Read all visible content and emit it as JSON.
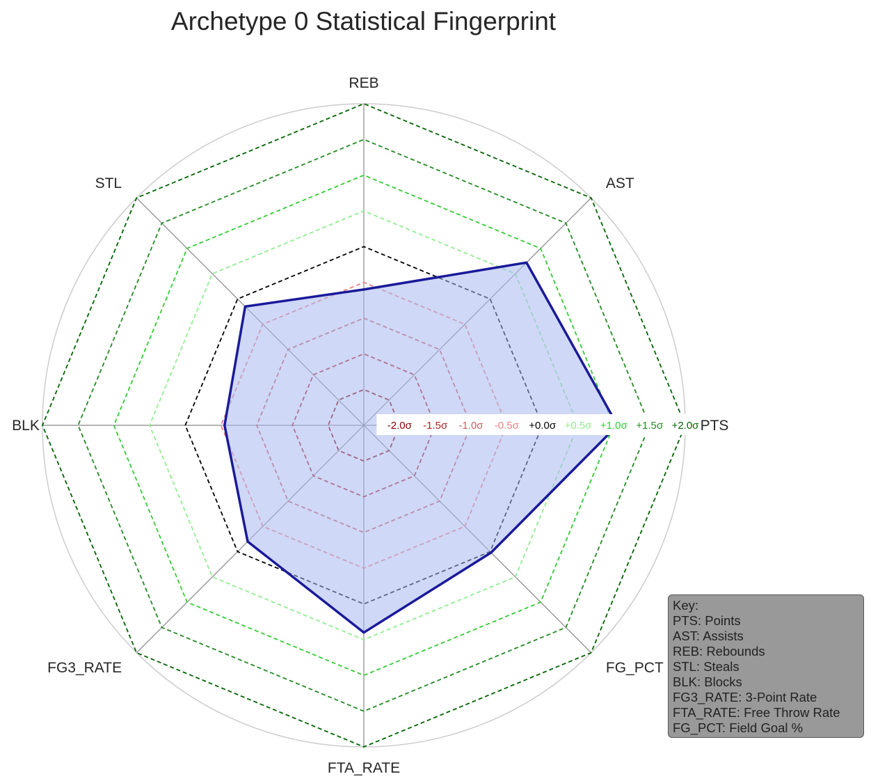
{
  "chart_data": {
    "type": "radar",
    "title": "Archetype 0 Statistical Fingerprint",
    "axes": [
      "PTS",
      "AST",
      "REB",
      "STL",
      "BLK",
      "FG3_RATE",
      "FTA_RATE",
      "FG_PCT"
    ],
    "rlim": [
      -2.5,
      2.0
    ],
    "grid_levels": [
      {
        "label": "-2.0σ",
        "value": -2.0,
        "color": "#8b0000"
      },
      {
        "label": "-1.5σ",
        "value": -1.5,
        "color": "#b22222"
      },
      {
        "label": "-1.0σ",
        "value": -1.0,
        "color": "#cd5c5c"
      },
      {
        "label": "-0.5σ",
        "value": -0.5,
        "color": "#f08080"
      },
      {
        "label": "+0.0σ",
        "value": 0.0,
        "color": "#000000"
      },
      {
        "label": "+0.5σ",
        "value": 0.5,
        "color": "#90ee90"
      },
      {
        "label": "+1.0σ",
        "value": 1.0,
        "color": "#32cd32"
      },
      {
        "label": "+1.5σ",
        "value": 1.5,
        "color": "#228b22"
      },
      {
        "label": "+2.0σ",
        "value": 2.0,
        "color": "#006400"
      }
    ],
    "series": [
      {
        "values": [
          1.05,
          0.72,
          -0.6,
          -0.15,
          -0.55,
          -0.2,
          0.4,
          0.02
        ],
        "line_color": "#1a1a9a",
        "fill_color": "#a8b8ee"
      }
    ],
    "grid": true
  },
  "key": {
    "title": "Key:",
    "entries": [
      "PTS: Points",
      "AST: Assists",
      "REB: Rebounds",
      "STL: Steals",
      "BLK: Blocks",
      "FG3_RATE: 3-Point Rate",
      "FTA_RATE: Free Throw Rate",
      "FG_PCT: Field Goal %"
    ]
  }
}
